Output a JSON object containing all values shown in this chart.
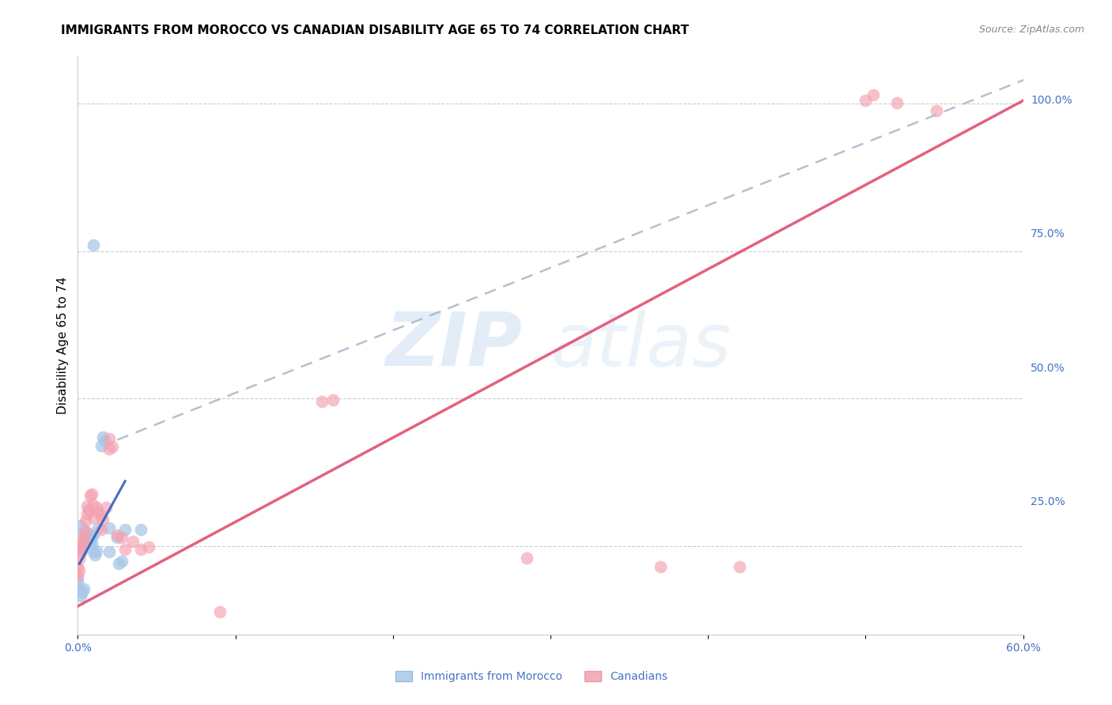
{
  "title": "IMMIGRANTS FROM MOROCCO VS CANADIAN DISABILITY AGE 65 TO 74 CORRELATION CHART",
  "source": "Source: ZipAtlas.com",
  "ylabel_left": "Disability Age 65 to 74",
  "ylabel_right_ticks": [
    0.0,
    0.25,
    0.5,
    0.75,
    1.0
  ],
  "ylabel_right_labels": [
    "",
    "25.0%",
    "50.0%",
    "75.0%",
    "100.0%"
  ],
  "xlim": [
    0.0,
    0.6
  ],
  "ylim": [
    0.1,
    1.08
  ],
  "x_ticks": [
    0.0,
    0.1,
    0.2,
    0.3,
    0.4,
    0.5,
    0.6
  ],
  "x_tick_labels": [
    "0.0%",
    "",
    "",
    "",
    "",
    "",
    "60.0%"
  ],
  "watermark_zip": "ZIP",
  "watermark_atlas": "atlas",
  "blue_scatter_color": "#a8c8e8",
  "pink_scatter_color": "#f4a0b0",
  "blue_line_color": "#3060c0",
  "pink_line_color": "#e05070",
  "gray_dash_color": "#aabbcc",
  "scatter_blue": [
    [
      0.002,
      0.285
    ],
    [
      0.003,
      0.245
    ],
    [
      0.004,
      0.275
    ],
    [
      0.005,
      0.268
    ],
    [
      0.005,
      0.26
    ],
    [
      0.006,
      0.272
    ],
    [
      0.006,
      0.258
    ],
    [
      0.007,
      0.268
    ],
    [
      0.007,
      0.255
    ],
    [
      0.008,
      0.265
    ],
    [
      0.008,
      0.258
    ],
    [
      0.009,
      0.268
    ],
    [
      0.009,
      0.255
    ],
    [
      0.01,
      0.268
    ],
    [
      0.01,
      0.24
    ],
    [
      0.011,
      0.235
    ],
    [
      0.012,
      0.242
    ],
    [
      0.013,
      0.28
    ],
    [
      0.015,
      0.42
    ],
    [
      0.016,
      0.435
    ],
    [
      0.017,
      0.428
    ],
    [
      0.02,
      0.28
    ],
    [
      0.02,
      0.24
    ],
    [
      0.025,
      0.265
    ],
    [
      0.026,
      0.22
    ],
    [
      0.028,
      0.225
    ],
    [
      0.03,
      0.278
    ],
    [
      0.04,
      0.278
    ],
    [
      0.001,
      0.175
    ],
    [
      0.002,
      0.165
    ],
    [
      0.003,
      0.172
    ],
    [
      0.004,
      0.178
    ],
    [
      0.0,
      0.195
    ],
    [
      0.0,
      0.188
    ],
    [
      0.01,
      0.76
    ]
  ],
  "scatter_pink": [
    [
      0.0,
      0.2
    ],
    [
      0.0,
      0.215
    ],
    [
      0.001,
      0.228
    ],
    [
      0.001,
      0.208
    ],
    [
      0.002,
      0.248
    ],
    [
      0.002,
      0.238
    ],
    [
      0.003,
      0.258
    ],
    [
      0.003,
      0.248
    ],
    [
      0.004,
      0.268
    ],
    [
      0.004,
      0.258
    ],
    [
      0.005,
      0.275
    ],
    [
      0.005,
      0.292
    ],
    [
      0.006,
      0.318
    ],
    [
      0.006,
      0.305
    ],
    [
      0.007,
      0.312
    ],
    [
      0.008,
      0.335
    ],
    [
      0.009,
      0.338
    ],
    [
      0.01,
      0.32
    ],
    [
      0.01,
      0.298
    ],
    [
      0.012,
      0.315
    ],
    [
      0.013,
      0.308
    ],
    [
      0.015,
      0.302
    ],
    [
      0.015,
      0.278
    ],
    [
      0.016,
      0.295
    ],
    [
      0.018,
      0.315
    ],
    [
      0.02,
      0.415
    ],
    [
      0.02,
      0.432
    ],
    [
      0.022,
      0.418
    ],
    [
      0.025,
      0.268
    ],
    [
      0.028,
      0.265
    ],
    [
      0.03,
      0.245
    ],
    [
      0.035,
      0.258
    ],
    [
      0.04,
      0.245
    ],
    [
      0.045,
      0.248
    ],
    [
      0.155,
      0.495
    ],
    [
      0.162,
      0.498
    ],
    [
      0.285,
      0.23
    ],
    [
      0.37,
      0.215
    ],
    [
      0.09,
      0.138
    ],
    [
      0.5,
      1.005
    ],
    [
      0.505,
      1.015
    ],
    [
      0.52,
      1.002
    ],
    [
      0.545,
      0.988
    ],
    [
      0.42,
      0.215
    ]
  ],
  "blue_solid_line_x": [
    0.001,
    0.03
  ],
  "blue_solid_line_y": [
    0.22,
    0.36
  ],
  "gray_dash_line_x": [
    0.025,
    0.605
  ],
  "gray_dash_line_y": [
    0.43,
    1.045
  ],
  "pink_line_x": [
    0.0,
    0.6
  ],
  "pink_line_y": [
    0.148,
    1.005
  ],
  "grid_color": "#cccccc",
  "background_color": "#ffffff",
  "title_fontsize": 11,
  "axis_label_color": "#4472c4",
  "bottom_legend_blue": "Immigrants from Morocco",
  "bottom_legend_pink": "Canadians"
}
